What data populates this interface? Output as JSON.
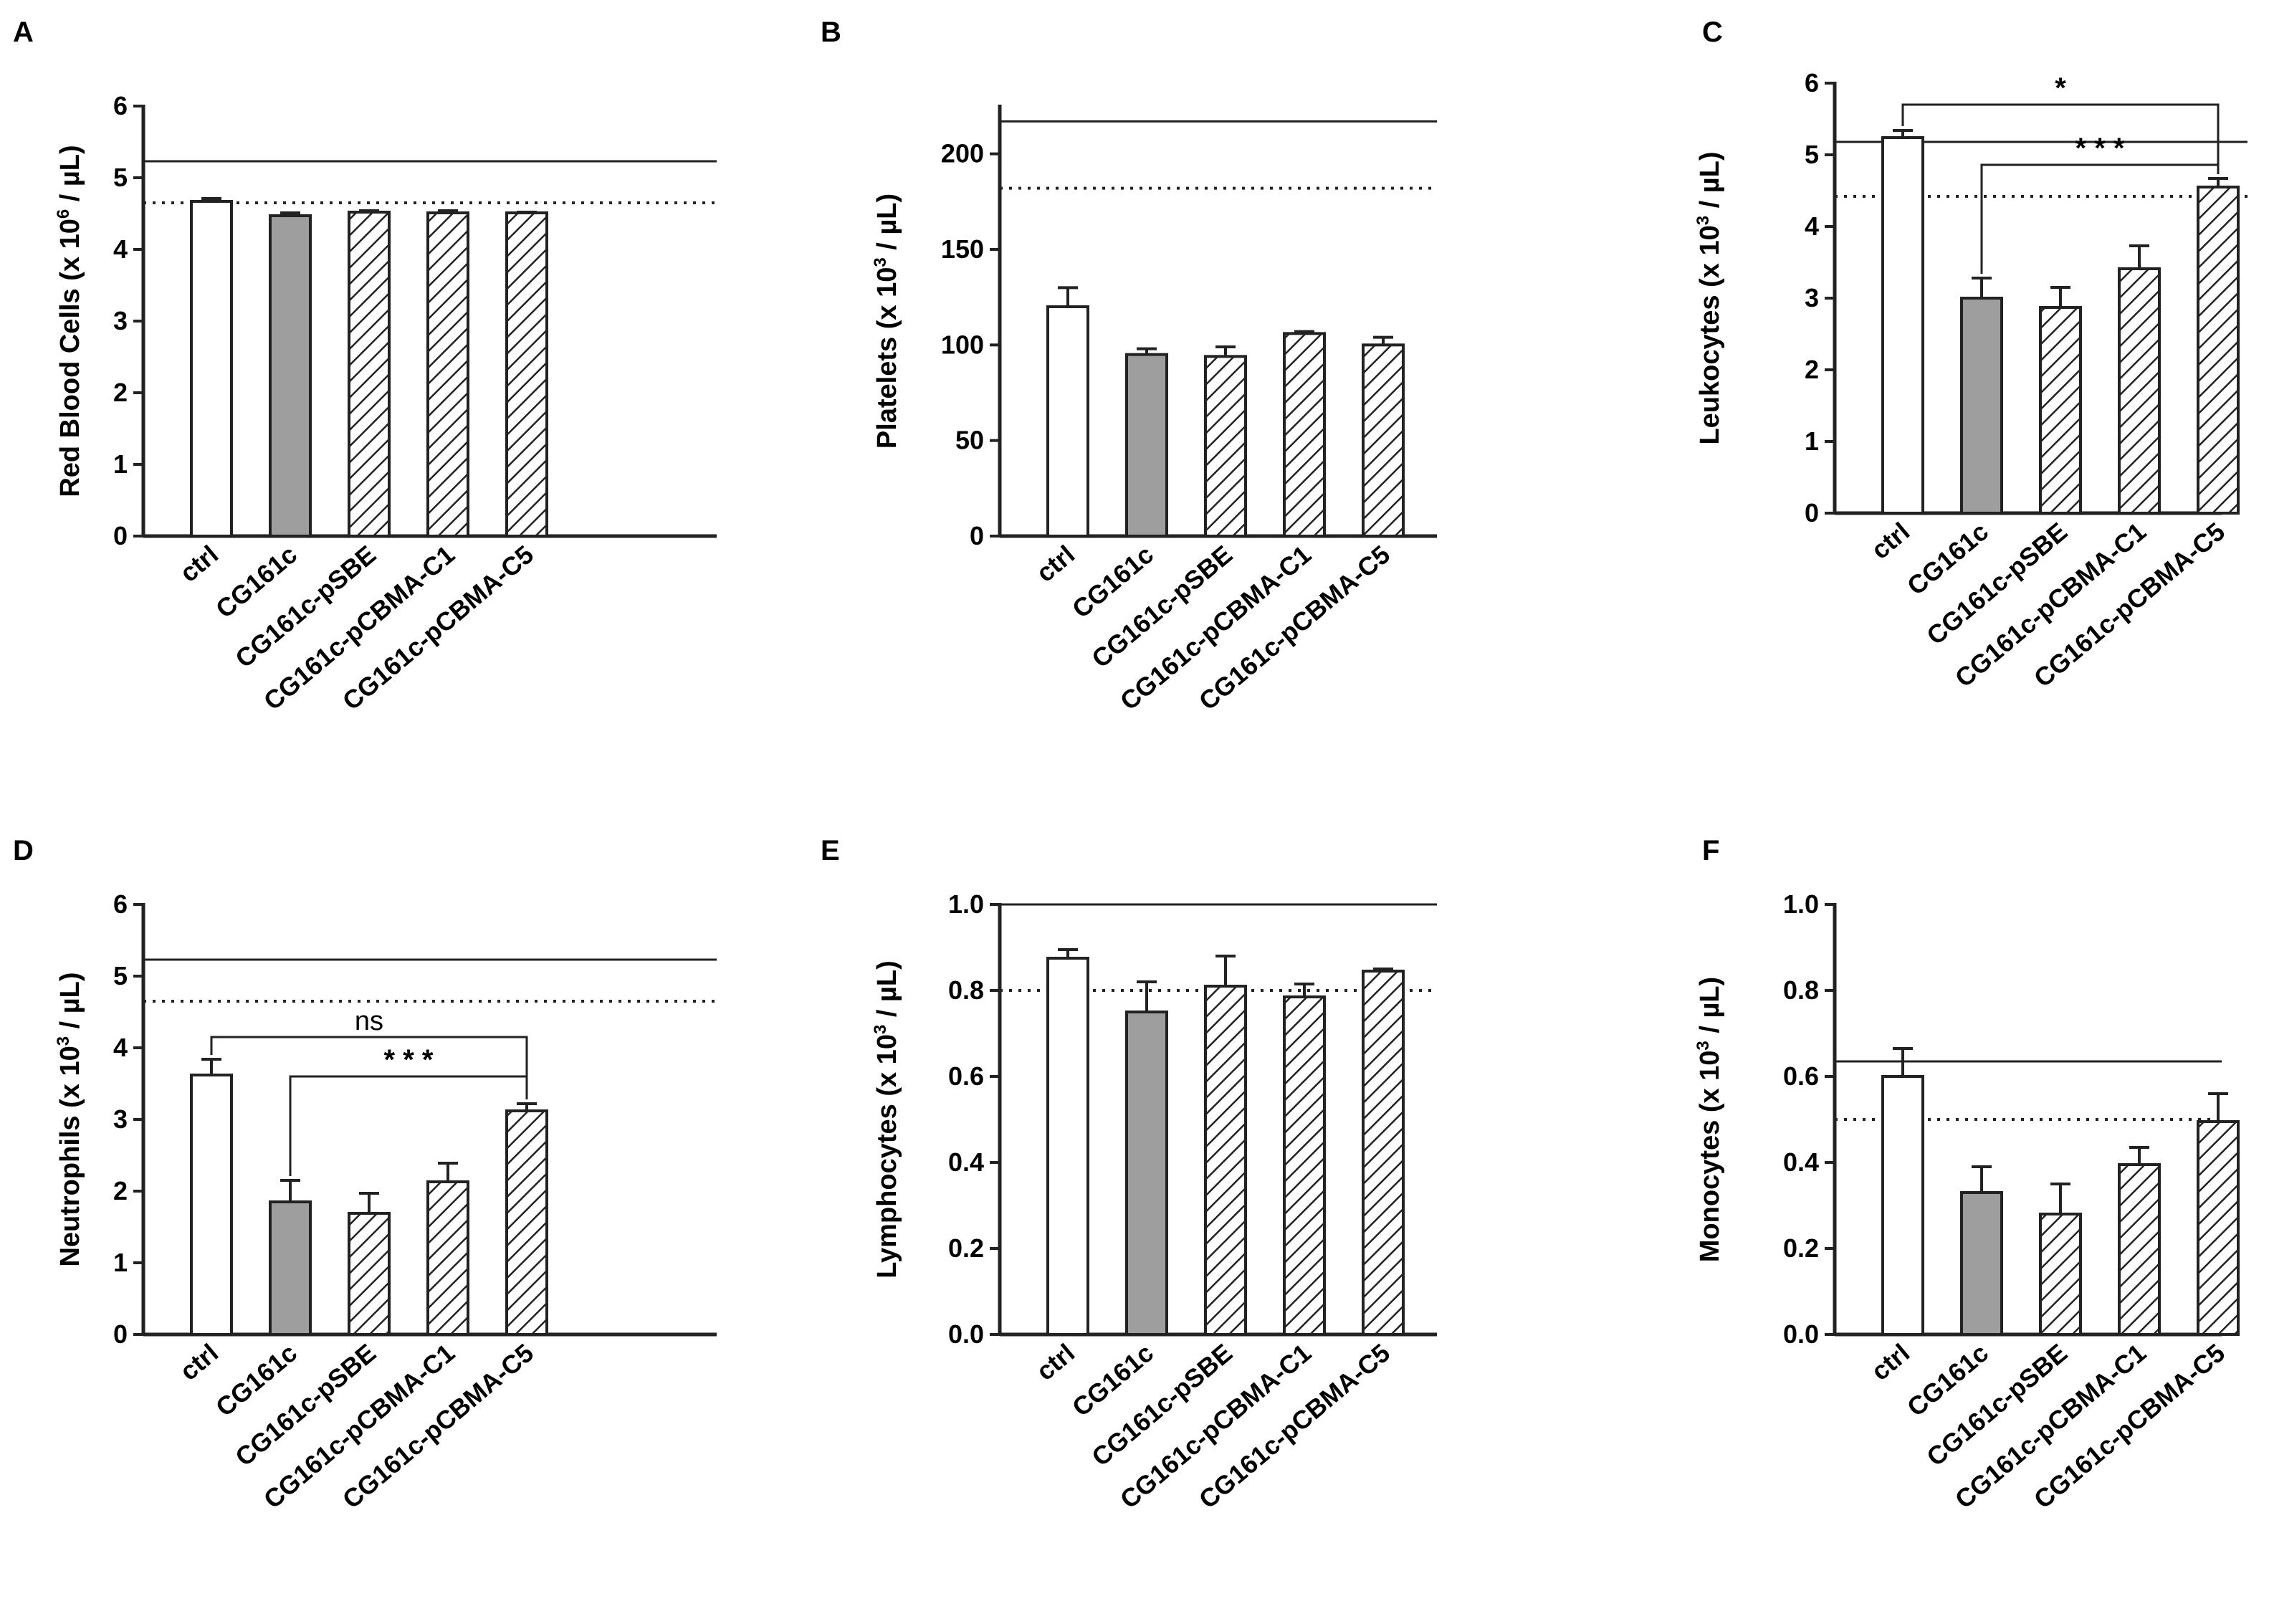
{
  "chart_data": [
    {
      "panel": "A",
      "type": "bar",
      "ylabel_pre": "Red Blood Cells (x 10",
      "ylabel_exp": "6",
      "ylabel_post": " / µL)",
      "categories": [
        "ctrl",
        "CG161c",
        "CG161c-pSBE",
        "CG161c-pCBMA-C1",
        "CG161c-pCBMA-C5"
      ],
      "values": [
        4.67,
        4.47,
        4.52,
        4.51,
        4.51
      ],
      "errors": [
        0.04,
        0.04,
        0.02,
        0.03,
        0.01
      ],
      "fills": [
        "white",
        "gray",
        "hatch",
        "hatch",
        "hatch"
      ],
      "ylim": [
        0,
        6
      ],
      "yticks": [
        "0",
        "1",
        "2",
        "3",
        "4",
        "5",
        "6"
      ],
      "ytick_values": [
        0,
        1,
        2,
        3,
        4,
        5,
        6
      ],
      "ref_solid": 5.23,
      "ref_dotted": 4.65,
      "brackets": []
    },
    {
      "panel": "B",
      "type": "bar",
      "ylabel_pre": "Platelets (x 10",
      "ylabel_exp": "3",
      "ylabel_post": " / µL)",
      "categories": [
        "ctrl",
        "CG161c",
        "CG161c-pSBE",
        "CG161c-pCBMA-C1",
        "CG161c-pCBMA-C5"
      ],
      "values": [
        120,
        95,
        94,
        106,
        100
      ],
      "errors": [
        10,
        3,
        5,
        1,
        4
      ],
      "fills": [
        "white",
        "gray",
        "hatch",
        "hatch",
        "hatch"
      ],
      "ylim": [
        0,
        225
      ],
      "yticks": [
        "0",
        "50",
        "100",
        "150",
        "200"
      ],
      "ytick_values": [
        0,
        50,
        100,
        150,
        200
      ],
      "ref_solid": 217,
      "ref_dotted": 182,
      "brackets": []
    },
    {
      "panel": "C",
      "type": "bar",
      "ylabel_pre": "Leukocytes (x 10",
      "ylabel_exp": "3",
      "ylabel_post": " / µL)",
      "categories": [
        "ctrl",
        "CG161c",
        "CG161c-pSBE",
        "CG161c-pCBMA-C1",
        "CG161c-pCBMA-C5"
      ],
      "values": [
        5.24,
        3.0,
        2.87,
        3.41,
        4.55
      ],
      "errors": [
        0.1,
        0.28,
        0.28,
        0.32,
        0.12
      ],
      "fills": [
        "white",
        "gray",
        "hatch",
        "hatch",
        "hatch"
      ],
      "ylim": [
        0,
        6
      ],
      "yticks": [
        "0",
        "1",
        "2",
        "3",
        "4",
        "5",
        "6"
      ],
      "ytick_values": [
        0,
        1,
        2,
        3,
        4,
        5,
        6
      ],
      "ref_solid": 5.18,
      "ref_dotted": 4.42,
      "brackets": [
        {
          "from": 0,
          "to": 4,
          "y": 5.7,
          "label": "*"
        },
        {
          "from": 1,
          "to": 4,
          "y": 4.86,
          "label": "* * *"
        }
      ]
    },
    {
      "panel": "D",
      "type": "bar",
      "ylabel_pre": "Neutrophils (x 10",
      "ylabel_exp": "3",
      "ylabel_post": " / µL)",
      "categories": [
        "ctrl",
        "CG161c",
        "CG161c-pSBE",
        "CG161c-pCBMA-C1",
        "CG161c-pCBMA-C5"
      ],
      "values": [
        3.62,
        1.85,
        1.69,
        2.13,
        3.12
      ],
      "errors": [
        0.22,
        0.3,
        0.28,
        0.26,
        0.1
      ],
      "fills": [
        "white",
        "gray",
        "hatch",
        "hatch",
        "hatch"
      ],
      "ylim": [
        0,
        6
      ],
      "yticks": [
        "0",
        "1",
        "2",
        "3",
        "4",
        "5",
        "6"
      ],
      "ytick_values": [
        0,
        1,
        2,
        3,
        4,
        5,
        6
      ],
      "ref_solid": 5.23,
      "ref_dotted": 4.65,
      "brackets": [
        {
          "from": 0,
          "to": 4,
          "y": 4.15,
          "label": "ns"
        },
        {
          "from": 1,
          "to": 4,
          "y": 3.6,
          "label": "* * *"
        }
      ]
    },
    {
      "panel": "E",
      "type": "bar",
      "ylabel_pre": "Lymphocytes (x 10",
      "ylabel_exp": "3",
      "ylabel_post": " / µL)",
      "categories": [
        "ctrl",
        "CG161c",
        "CG161c-pSBE",
        "CG161c-pCBMA-C1",
        "CG161c-pCBMA-C5"
      ],
      "values": [
        0.875,
        0.75,
        0.81,
        0.785,
        0.845
      ],
      "errors": [
        0.02,
        0.07,
        0.07,
        0.03,
        0.005
      ],
      "fills": [
        "white",
        "gray",
        "hatch",
        "hatch",
        "hatch"
      ],
      "ylim": [
        0,
        1.0
      ],
      "yticks": [
        "0.0",
        "0.2",
        "0.4",
        "0.6",
        "0.8",
        "1.0"
      ],
      "ytick_values": [
        0,
        0.2,
        0.4,
        0.6,
        0.8,
        1.0
      ],
      "ref_solid": 1.0,
      "ref_dotted": 0.8,
      "brackets": []
    },
    {
      "panel": "F",
      "type": "bar",
      "ylabel_pre": "Monocytes (x 10",
      "ylabel_exp": "3",
      "ylabel_post": " / µL)",
      "categories": [
        "ctrl",
        "CG161c",
        "CG161c-pSBE",
        "CG161c-pCBMA-C1",
        "CG161c-pCBMA-C5"
      ],
      "values": [
        0.6,
        0.33,
        0.28,
        0.395,
        0.495
      ],
      "errors": [
        0.065,
        0.06,
        0.07,
        0.04,
        0.065
      ],
      "fills": [
        "white",
        "gray",
        "hatch",
        "hatch",
        "hatch"
      ],
      "ylim": [
        0,
        1.0
      ],
      "yticks": [
        "0.0",
        "0.2",
        "0.4",
        "0.6",
        "0.8",
        "1.0"
      ],
      "ytick_values": [
        0,
        0.2,
        0.4,
        0.6,
        0.8,
        1.0
      ],
      "ref_solid": 0.635,
      "ref_dotted": 0.5,
      "brackets": []
    }
  ]
}
